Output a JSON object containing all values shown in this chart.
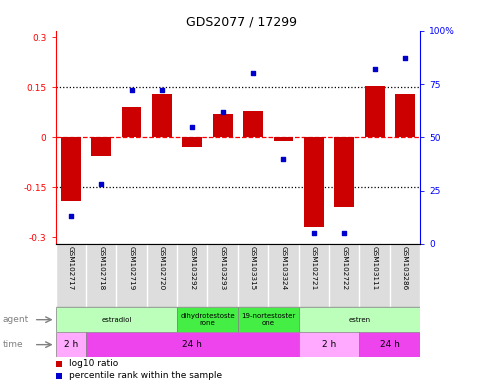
{
  "title": "GDS2077 / 17299",
  "samples": [
    "GSM102717",
    "GSM102718",
    "GSM102719",
    "GSM102720",
    "GSM103292",
    "GSM103293",
    "GSM103315",
    "GSM103324",
    "GSM102721",
    "GSM102722",
    "GSM103111",
    "GSM103286"
  ],
  "log10_ratio": [
    -0.19,
    -0.055,
    0.09,
    0.13,
    -0.03,
    0.07,
    0.08,
    -0.01,
    -0.27,
    -0.21,
    0.155,
    0.13
  ],
  "percentile_rank": [
    13,
    28,
    72,
    72,
    55,
    62,
    80,
    40,
    5,
    5,
    82,
    87
  ],
  "ylim_left": [
    -0.32,
    0.32
  ],
  "ylim_right": [
    0,
    100
  ],
  "yticks_left": [
    -0.3,
    -0.15,
    0.0,
    0.15,
    0.3
  ],
  "yticks_right": [
    0,
    25,
    50,
    75,
    100
  ],
  "hlines": [
    -0.15,
    0.0,
    0.15
  ],
  "hline_styles": [
    "dotted",
    "dashed",
    "dotted"
  ],
  "hline_colors": [
    "black",
    "red",
    "black"
  ],
  "bar_color": "#cc0000",
  "dot_color": "#0000cc",
  "agent_groups": [
    {
      "label": "estradiol",
      "start": 0,
      "end": 4,
      "color": "#bbffbb"
    },
    {
      "label": "dihydrotestoste\nrone",
      "start": 4,
      "end": 6,
      "color": "#44ee44"
    },
    {
      "label": "19-nortestoster\none",
      "start": 6,
      "end": 8,
      "color": "#44ee44"
    },
    {
      "label": "estren",
      "start": 8,
      "end": 12,
      "color": "#bbffbb"
    }
  ],
  "time_groups": [
    {
      "label": "2 h",
      "start": 0,
      "end": 1,
      "color": "#ffaaff"
    },
    {
      "label": "24 h",
      "start": 1,
      "end": 8,
      "color": "#ee44ee"
    },
    {
      "label": "2 h",
      "start": 8,
      "end": 10,
      "color": "#ffaaff"
    },
    {
      "label": "24 h",
      "start": 10,
      "end": 12,
      "color": "#ee44ee"
    }
  ],
  "legend_items": [
    {
      "color": "#cc0000",
      "label": "log10 ratio"
    },
    {
      "color": "#0000cc",
      "label": "percentile rank within the sample"
    }
  ]
}
